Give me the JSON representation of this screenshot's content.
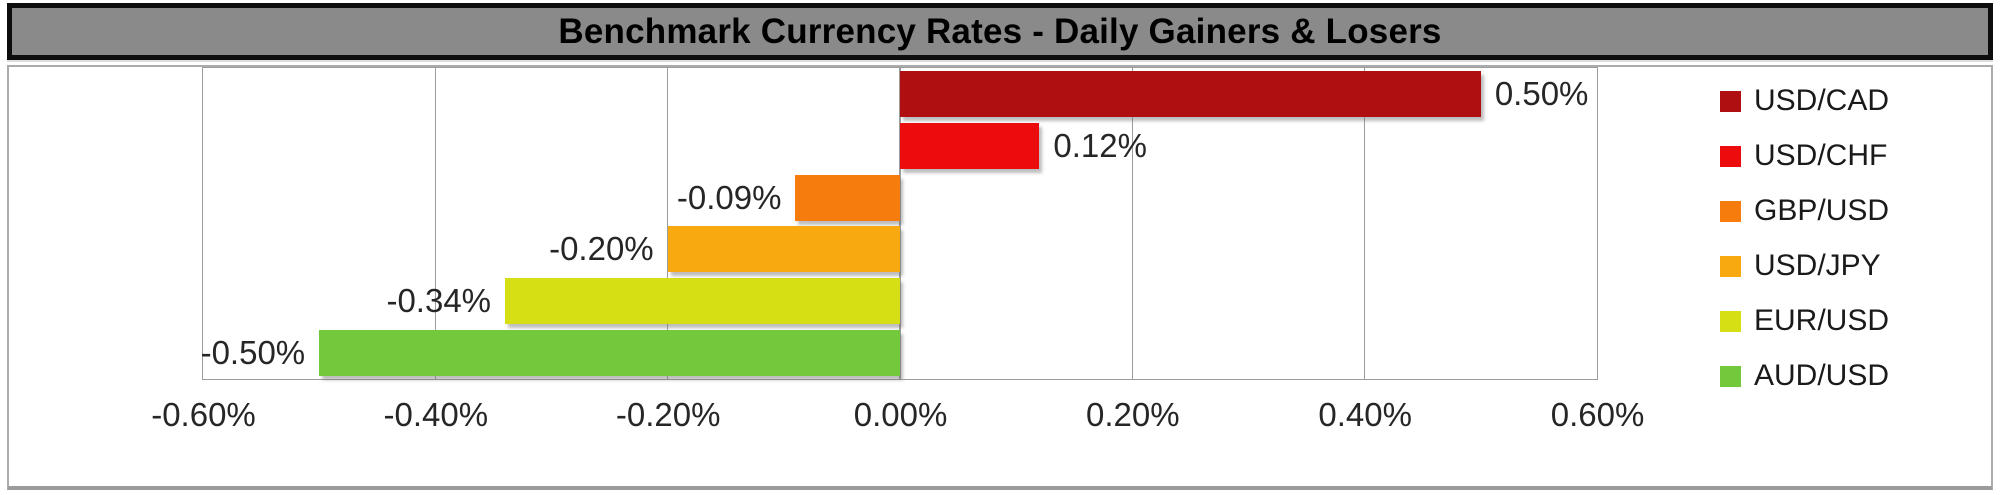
{
  "title": "Benchmark Currency Rates - Daily Gainers & Losers",
  "colors": {
    "title_bg": "#8a8a8a",
    "title_border": "#0d0d0d",
    "frame_border": "#ababab",
    "gridline": "#9d9d9d",
    "label_text": "#262626"
  },
  "chart_data": {
    "type": "bar",
    "orientation": "horizontal",
    "title": "Benchmark Currency Rates - Daily Gainers & Losers",
    "categories": [
      "USD/CAD",
      "USD/CHF",
      "GBP/USD",
      "USD/JPY",
      "EUR/USD",
      "AUD/USD"
    ],
    "values": [
      0.5,
      0.12,
      -0.09,
      -0.2,
      -0.34,
      -0.5
    ],
    "value_labels": [
      "0.50%",
      "0.12%",
      "-0.09%",
      "-0.20%",
      "-0.34%",
      "-0.50%"
    ],
    "bar_colors": [
      "#af0f11",
      "#ec0b0d",
      "#f67d0d",
      "#f7a90f",
      "#d6df13",
      "#72c93c"
    ],
    "xlim": [
      -0.6,
      0.6
    ],
    "x_tick_values": [
      -0.6,
      -0.4,
      -0.2,
      0.0,
      0.2,
      0.4,
      0.6
    ],
    "x_tick_labels": [
      "-0.60%",
      "-0.40%",
      "-0.20%",
      "0.00%",
      "0.20%",
      "0.40%",
      "0.60%"
    ],
    "grid": true,
    "legend_position": "right",
    "legend": [
      {
        "label": "USD/CAD",
        "color": "#af0f11"
      },
      {
        "label": "USD/CHF",
        "color": "#ec0b0d"
      },
      {
        "label": "GBP/USD",
        "color": "#f67d0d"
      },
      {
        "label": "USD/JPY",
        "color": "#f7a90f"
      },
      {
        "label": "EUR/USD",
        "color": "#d6df13"
      },
      {
        "label": "AUD/USD",
        "color": "#72c93c"
      }
    ]
  }
}
